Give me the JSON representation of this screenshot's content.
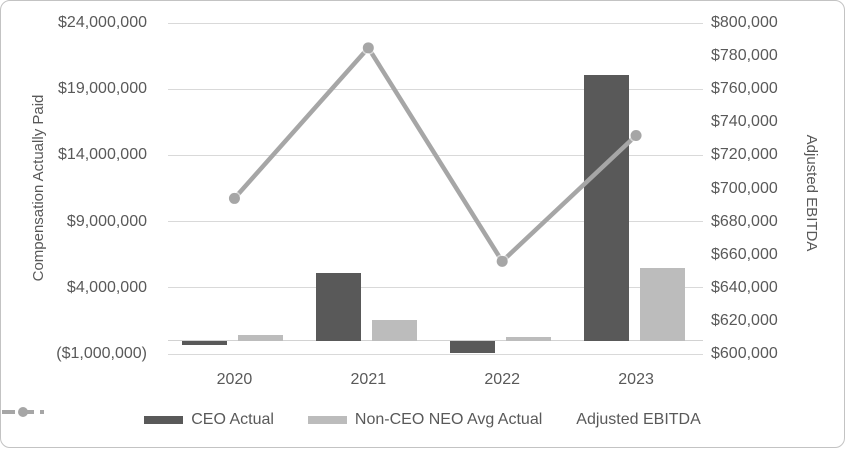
{
  "chart_data": {
    "type": "combo-bar-line",
    "title": "",
    "categories": [
      "2020",
      "2021",
      "2022",
      "2023"
    ],
    "series": [
      {
        "name": "CEO Actual",
        "render": "bar",
        "axis": "left",
        "color": "#595959",
        "values": [
          -350000,
          5100000,
          -950000,
          20100000
        ]
      },
      {
        "name": "Non-CEO NEO Avg Actual",
        "render": "bar",
        "axis": "left",
        "color": "#bcbcbc",
        "values": [
          400000,
          1550000,
          250000,
          5500000
        ]
      },
      {
        "name": "Adjusted EBITDA",
        "render": "line",
        "axis": "right",
        "color": "#a6a6a6",
        "values": [
          694000,
          785000,
          656000,
          732000
        ]
      }
    ],
    "left_axis": {
      "title": "Compensation Actually Paid",
      "min": -1000000,
      "max": 24000000,
      "tick_interval": 5000000,
      "tick_labels": [
        "$24,000,000",
        "$19,000,000",
        "$14,000,000",
        "$9,000,000",
        "$4,000,000",
        "($1,000,000)"
      ]
    },
    "right_axis": {
      "title": "Adjusted EBITDA",
      "min": 600000,
      "max": 800000,
      "tick_interval": 20000,
      "tick_labels": [
        "$800,000",
        "$780,000",
        "$760,000",
        "$740,000",
        "$720,000",
        "$700,000",
        "$680,000",
        "$660,000",
        "$640,000",
        "$620,000",
        "$600,000"
      ]
    },
    "grid": true,
    "legend_position": "bottom"
  },
  "legend": {
    "items": [
      {
        "label": "CEO Actual",
        "swatch": "bar",
        "color": "#595959"
      },
      {
        "label": "Non-CEO NEO Avg Actual",
        "swatch": "bar",
        "color": "#bcbcbc"
      },
      {
        "label": "Adjusted EBITDA",
        "swatch": "line-marker",
        "color": "#a6a6a6"
      }
    ]
  },
  "colors": {
    "ceo_bar": "#595959",
    "neo_bar": "#bcbcbc",
    "ebitda_line": "#a6a6a6",
    "gridline": "#d9d9d9",
    "axis_text": "#595959",
    "border": "#c3c3c3"
  }
}
